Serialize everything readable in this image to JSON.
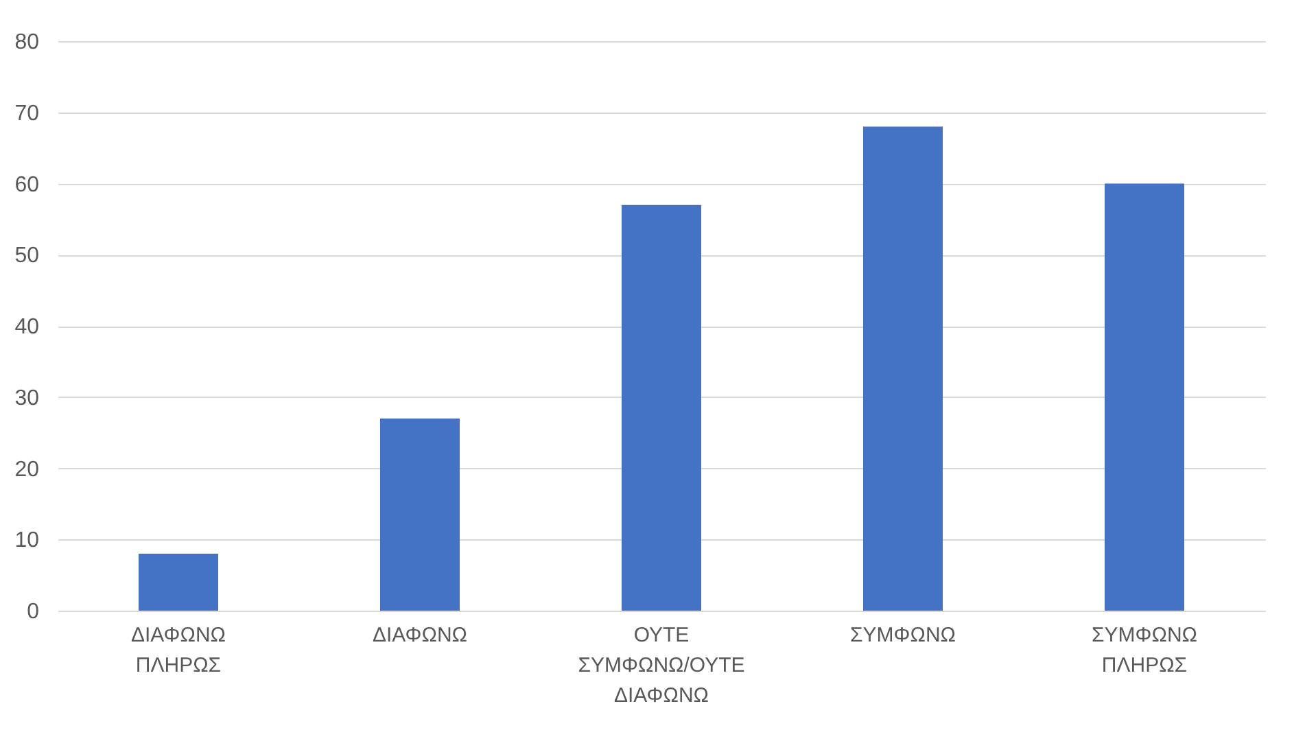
{
  "chart_data": {
    "type": "bar",
    "categories": [
      "ΔΙΑΦΩΝΩ ΠΛΗΡΩΣ",
      "ΔΙΑΦΩΝΩ",
      "ΟΥΤΕ ΣΥΜΦΩΝΩ/ΟΥΤΕ ΔΙΑΦΩΝΩ",
      "ΣΥΜΦΩΝΩ",
      "ΣΥΜΦΩΝΩ ΠΛΗΡΩΣ"
    ],
    "values": [
      8,
      27,
      57,
      68,
      60
    ],
    "color": "#4472c4",
    "ylim": [
      0,
      80
    ],
    "yticks": [
      0,
      10,
      20,
      30,
      40,
      50,
      60,
      70,
      80
    ],
    "grid": "y",
    "legend": false
  }
}
